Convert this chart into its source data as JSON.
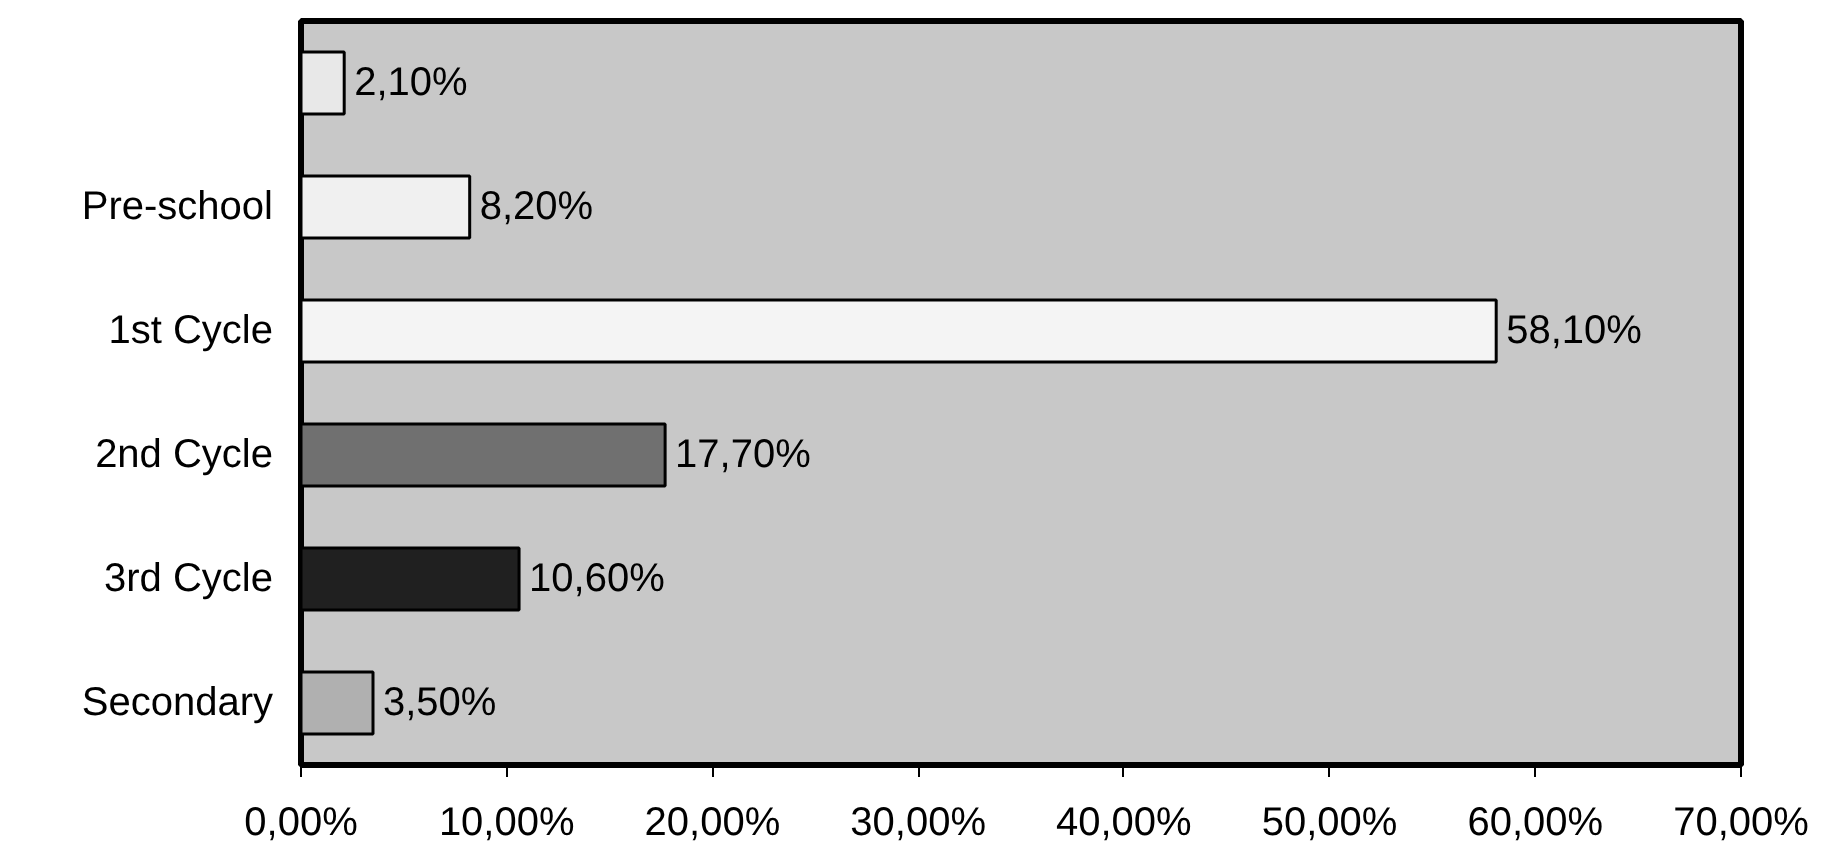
{
  "chart_data": {
    "type": "bar",
    "orientation": "horizontal",
    "categories": [
      null,
      "Pre-school",
      "1st Cycle",
      "2nd Cycle",
      "3rd Cycle",
      "Secondary"
    ],
    "values": [
      2.1,
      8.2,
      58.1,
      17.7,
      10.6,
      3.5
    ],
    "value_labels": [
      "2,10%",
      "8,20%",
      "58,10%",
      "17,70%",
      "10,60%",
      "3,50%"
    ],
    "colors": [
      "#e8e8e8",
      "#f0f0f0",
      "#f4f4f4",
      "#707070",
      "#202020",
      "#b0b0b0"
    ],
    "xlim": [
      0,
      70
    ],
    "xticks": [
      {
        "value": 0,
        "label": "0,00%"
      },
      {
        "value": 10,
        "label": "10,00%"
      },
      {
        "value": 20,
        "label": "20,00%"
      },
      {
        "value": 30,
        "label": "30,00%"
      },
      {
        "value": 40,
        "label": "40,00%"
      },
      {
        "value": 50,
        "label": "50,00%"
      },
      {
        "value": 60,
        "label": "60,00%"
      },
      {
        "value": 70,
        "label": "70,00%"
      }
    ],
    "grid": false
  }
}
